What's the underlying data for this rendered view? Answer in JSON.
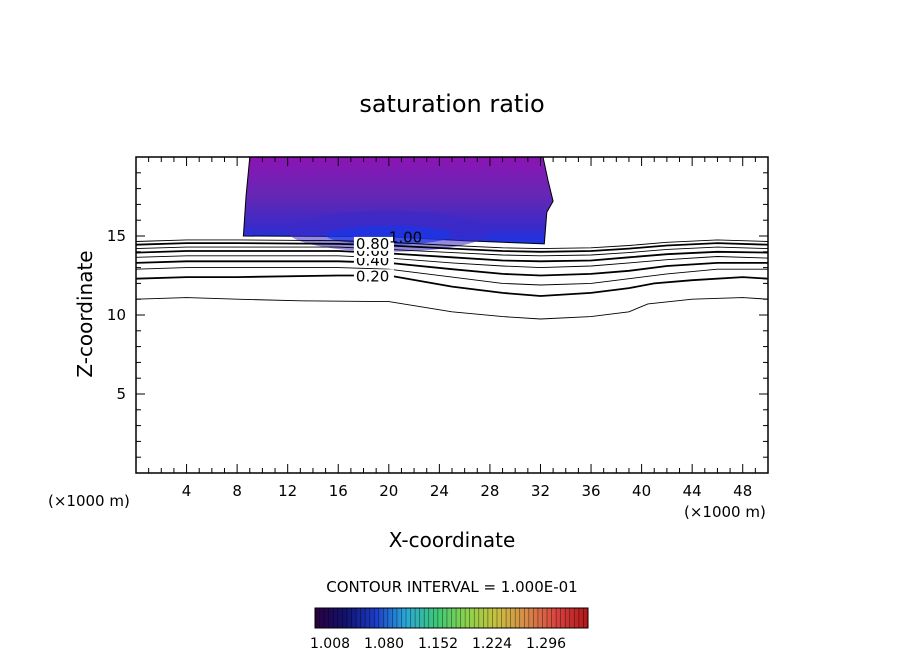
{
  "chart_data": {
    "type": "contour",
    "title": "saturation ratio",
    "xlabel": "X-coordinate",
    "ylabel": "Z-coordinate",
    "x_unit": "(×1000 m)",
    "z_unit": "(×1000 m)",
    "xlim": [
      0,
      50
    ],
    "zlim": [
      0,
      20
    ],
    "x_ticks": [
      4,
      8,
      12,
      16,
      20,
      24,
      28,
      32,
      36,
      40,
      44,
      48
    ],
    "z_ticks": [
      5,
      10,
      15
    ],
    "contour_interval": "CONTOUR INTERVAL = 1.000E-01",
    "contour_levels": [
      {
        "level": 0.1,
        "points": [
          [
            0,
            11.0
          ],
          [
            4,
            11.1
          ],
          [
            8,
            11.0
          ],
          [
            13,
            10.9
          ],
          [
            20,
            10.85
          ],
          [
            25,
            10.2
          ],
          [
            29,
            9.9
          ],
          [
            32,
            9.75
          ],
          [
            36,
            9.9
          ],
          [
            39,
            10.2
          ],
          [
            40.5,
            10.7
          ],
          [
            44,
            11.0
          ],
          [
            48,
            11.1
          ],
          [
            50,
            11.0
          ]
        ]
      },
      {
        "level": 0.2,
        "points": [
          [
            0,
            12.3
          ],
          [
            4,
            12.4
          ],
          [
            8,
            12.4
          ],
          [
            16,
            12.5
          ],
          [
            20,
            12.5
          ],
          [
            25,
            11.8
          ],
          [
            29,
            11.4
          ],
          [
            32,
            11.2
          ],
          [
            36,
            11.4
          ],
          [
            39,
            11.7
          ],
          [
            41,
            12.0
          ],
          [
            44,
            12.2
          ],
          [
            48,
            12.4
          ],
          [
            50,
            12.3
          ]
        ]
      },
      {
        "level": 0.3,
        "points": [
          [
            0,
            12.9
          ],
          [
            4,
            13.0
          ],
          [
            8,
            13.0
          ],
          [
            16,
            13.0
          ],
          [
            20,
            12.9
          ],
          [
            25,
            12.4
          ],
          [
            29,
            12.0
          ],
          [
            32,
            11.9
          ],
          [
            36,
            12.0
          ],
          [
            39,
            12.3
          ],
          [
            42,
            12.6
          ],
          [
            46,
            12.9
          ],
          [
            50,
            12.9
          ]
        ]
      },
      {
        "level": 0.4,
        "points": [
          [
            0,
            13.3
          ],
          [
            4,
            13.4
          ],
          [
            8,
            13.4
          ],
          [
            16,
            13.4
          ],
          [
            20,
            13.3
          ],
          [
            25,
            12.9
          ],
          [
            29,
            12.6
          ],
          [
            32,
            12.5
          ],
          [
            36,
            12.6
          ],
          [
            39,
            12.8
          ],
          [
            42,
            13.1
          ],
          [
            46,
            13.3
          ],
          [
            50,
            13.3
          ]
        ]
      },
      {
        "level": 0.5,
        "points": [
          [
            0,
            13.65
          ],
          [
            4,
            13.75
          ],
          [
            8,
            13.75
          ],
          [
            16,
            13.75
          ],
          [
            20,
            13.6
          ],
          [
            25,
            13.3
          ],
          [
            29,
            13.1
          ],
          [
            32,
            13.0
          ],
          [
            36,
            13.1
          ],
          [
            39,
            13.3
          ],
          [
            42,
            13.5
          ],
          [
            46,
            13.7
          ],
          [
            50,
            13.6
          ]
        ]
      },
      {
        "level": 0.6,
        "points": [
          [
            0,
            13.95
          ],
          [
            4,
            14.05
          ],
          [
            8,
            14.05
          ],
          [
            16,
            14.05
          ],
          [
            20,
            13.9
          ],
          [
            25,
            13.65
          ],
          [
            29,
            13.45
          ],
          [
            32,
            13.4
          ],
          [
            36,
            13.45
          ],
          [
            39,
            13.65
          ],
          [
            42,
            13.85
          ],
          [
            46,
            14.0
          ],
          [
            50,
            13.95
          ]
        ]
      },
      {
        "level": 0.7,
        "points": [
          [
            0,
            14.2
          ],
          [
            4,
            14.3
          ],
          [
            8,
            14.3
          ],
          [
            16,
            14.3
          ],
          [
            20,
            14.15
          ],
          [
            25,
            13.95
          ],
          [
            29,
            13.8
          ],
          [
            32,
            13.75
          ],
          [
            36,
            13.8
          ],
          [
            39,
            13.95
          ],
          [
            42,
            14.15
          ],
          [
            46,
            14.3
          ],
          [
            50,
            14.2
          ]
        ]
      },
      {
        "level": 0.8,
        "points": [
          [
            0,
            14.45
          ],
          [
            4,
            14.55
          ],
          [
            8,
            14.55
          ],
          [
            16,
            14.5
          ],
          [
            20,
            14.4
          ],
          [
            25,
            14.2
          ],
          [
            29,
            14.05
          ],
          [
            32,
            14.0
          ],
          [
            36,
            14.05
          ],
          [
            39,
            14.2
          ],
          [
            42,
            14.4
          ],
          [
            46,
            14.55
          ],
          [
            50,
            14.45
          ]
        ]
      },
      {
        "level": 0.9,
        "points": [
          [
            0,
            14.65
          ],
          [
            4,
            14.75
          ],
          [
            8,
            14.75
          ],
          [
            16,
            14.7
          ],
          [
            20,
            14.6
          ],
          [
            25,
            14.4
          ],
          [
            29,
            14.25
          ],
          [
            32,
            14.2
          ],
          [
            36,
            14.25
          ],
          [
            39,
            14.4
          ],
          [
            42,
            14.6
          ],
          [
            46,
            14.75
          ],
          [
            50,
            14.65
          ]
        ]
      }
    ],
    "contour_labels": [
      {
        "text": "0.20",
        "x": 17.4,
        "z": 12.45
      },
      {
        "text": "0.40",
        "x": 17.4,
        "z": 13.45
      },
      {
        "text": "0.60",
        "x": 17.4,
        "z": 14.05
      },
      {
        "text": "0.80",
        "x": 17.4,
        "z": 14.5
      },
      {
        "text": "1.00",
        "x": 20.0,
        "z": 14.9
      }
    ],
    "supersaturated_region": {
      "x_range": [
        8.5,
        33
      ],
      "z_range": [
        14.5,
        20
      ]
    },
    "colorbar": {
      "ticks": [
        "1.008",
        "1.080",
        "1.152",
        "1.224",
        "1.296"
      ],
      "colors": [
        "#2a0040",
        "#12126e",
        "#1c3cc8",
        "#2aa8d8",
        "#3cc878",
        "#8cd24a",
        "#c8c040",
        "#d88848",
        "#d84040",
        "#b01818"
      ]
    },
    "fill_colors": {
      "outer": "#8c14b4",
      "mid": "#6428b4",
      "inner": "#3a2ac8",
      "core": "#1a36e6"
    }
  }
}
